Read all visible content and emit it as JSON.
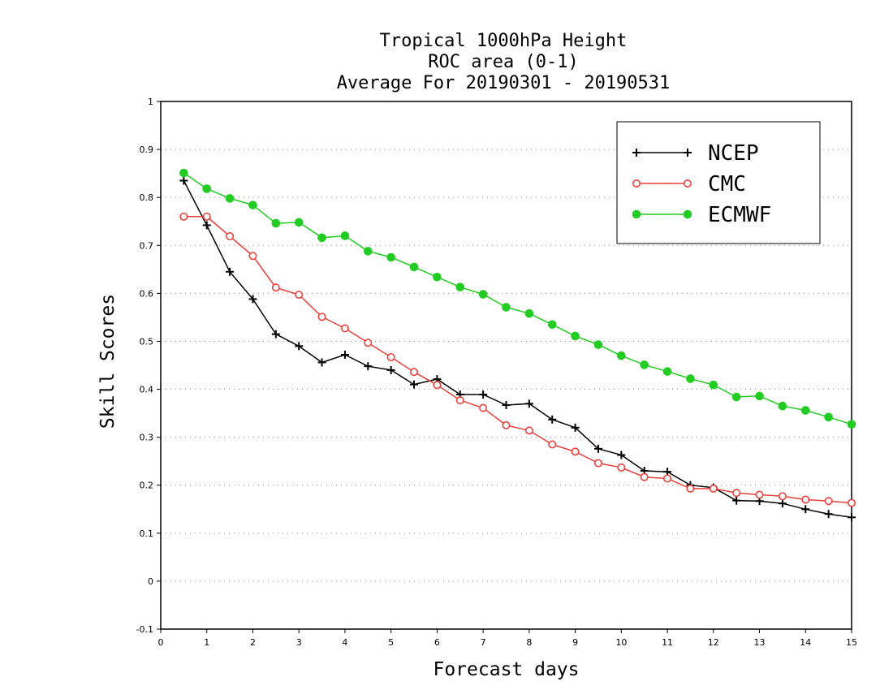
{
  "chart_data": {
    "type": "line",
    "title_lines": [
      "Tropical 1000hPa Height",
      "ROC area (0-1)",
      "Average For 20190301 - 20190531"
    ],
    "xlabel": "Forecast days",
    "ylabel": "Skill Scores",
    "xlim": [
      0,
      15
    ],
    "ylim": [
      -0.1,
      1
    ],
    "x_ticks": [
      "0",
      "1",
      "2",
      "3",
      "4",
      "5",
      "6",
      "7",
      "8",
      "9",
      "10",
      "11",
      "12",
      "13",
      "14",
      "15"
    ],
    "y_ticks": [
      "-0.1",
      "0",
      "0.1",
      "0.2",
      "0.3",
      "0.4",
      "0.5",
      "0.6",
      "0.7",
      "0.8",
      "0.9",
      "1"
    ],
    "grid": true,
    "legend_position": "top-right",
    "x": [
      0.5,
      1,
      1.5,
      2,
      2.5,
      3,
      3.5,
      4,
      4.5,
      5,
      5.5,
      6,
      6.5,
      7,
      7.5,
      8,
      8.5,
      9,
      9.5,
      10,
      10.5,
      11,
      11.5,
      12,
      12.5,
      13,
      13.5,
      14,
      14.5,
      15
    ],
    "series": [
      {
        "name": "NCEP",
        "color": "#000000",
        "marker": "plus",
        "values": [
          0.835,
          0.742,
          0.645,
          0.588,
          0.515,
          0.49,
          0.456,
          0.472,
          0.448,
          0.44,
          0.41,
          0.421,
          0.389,
          0.389,
          0.367,
          0.37,
          0.337,
          0.32,
          0.276,
          0.263,
          0.23,
          0.228,
          0.2,
          0.195,
          0.168,
          0.167,
          0.162,
          0.15,
          0.14,
          0.133
        ]
      },
      {
        "name": "CMC",
        "color": "#e8413c",
        "marker": "open-circle",
        "values": [
          0.76,
          0.76,
          0.719,
          0.678,
          0.612,
          0.597,
          0.551,
          0.527,
          0.497,
          0.467,
          0.436,
          0.409,
          0.377,
          0.361,
          0.325,
          0.314,
          0.285,
          0.27,
          0.246,
          0.237,
          0.217,
          0.214,
          0.193,
          0.193,
          0.184,
          0.18,
          0.177,
          0.17,
          0.167,
          0.163
        ]
      },
      {
        "name": "ECMWF",
        "color": "#22cc22",
        "marker": "filled-circle",
        "values": [
          0.851,
          0.818,
          0.798,
          0.784,
          0.746,
          0.748,
          0.716,
          0.72,
          0.688,
          0.675,
          0.655,
          0.634,
          0.613,
          0.598,
          0.571,
          0.558,
          0.535,
          0.511,
          0.493,
          0.47,
          0.451,
          0.437,
          0.422,
          0.409,
          0.384,
          0.386,
          0.365,
          0.356,
          0.342,
          0.327
        ]
      }
    ]
  }
}
